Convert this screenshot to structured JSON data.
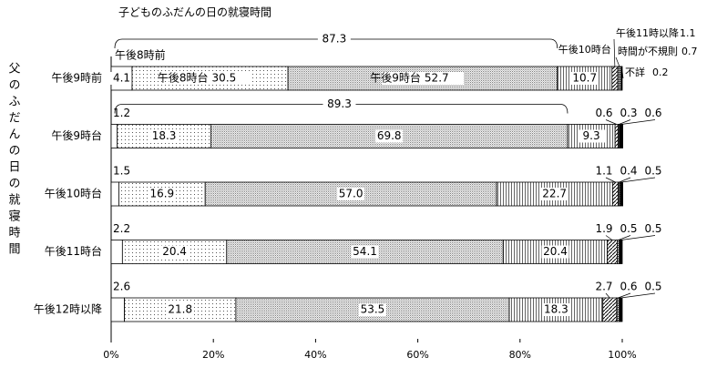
{
  "chart_data": {
    "type": "stacked-bar-horizontal",
    "title": "子どものふだんの日の就寝時間",
    "y_label": "父のふだんの日の就寝時間",
    "categories": [
      "午後9時前",
      "午後9時台",
      "午後10時台",
      "午後11時台",
      "午後12時以降"
    ],
    "series": [
      {
        "name": "午後8時前",
        "pattern": "none",
        "values": [
          4.1,
          1.2,
          1.5,
          2.2,
          2.6
        ]
      },
      {
        "name": "午後8時台",
        "pattern": "sparse-dots",
        "values": [
          30.5,
          18.3,
          16.9,
          20.4,
          21.8
        ]
      },
      {
        "name": "午後9時台",
        "pattern": "dense-dots",
        "values": [
          52.7,
          69.8,
          57.0,
          54.1,
          53.5
        ],
        "value_labels": [
          "52.7",
          "69.8",
          "57.0",
          "54.1",
          "53.5"
        ]
      },
      {
        "name": "午後10時台",
        "pattern": "vertical-lines",
        "values": [
          10.7,
          9.3,
          22.7,
          20.4,
          18.3
        ]
      },
      {
        "name": "午後11時以降",
        "pattern": "diagonal-lines",
        "values": [
          1.1,
          0.6,
          1.1,
          1.9,
          2.7
        ]
      },
      {
        "name": "時間が不規則",
        "pattern": "dense-hatch",
        "values": [
          0.7,
          0.3,
          0.4,
          0.5,
          0.6
        ]
      },
      {
        "name": "不詳",
        "pattern": "solid",
        "values": [
          0.2,
          0.6,
          0.5,
          0.5,
          0.5
        ]
      }
    ],
    "bracket_totals": [
      87.3,
      89.3,
      null,
      null,
      null
    ],
    "xlim": [
      0,
      100
    ],
    "xticks": [
      {
        "value": 0,
        "label": "0%"
      },
      {
        "value": 20,
        "label": "20%"
      },
      {
        "value": 40,
        "label": "40%"
      },
      {
        "value": 60,
        "label": "60%"
      },
      {
        "value": 80,
        "label": "80%"
      },
      {
        "value": 100,
        "label": "100%"
      }
    ]
  }
}
